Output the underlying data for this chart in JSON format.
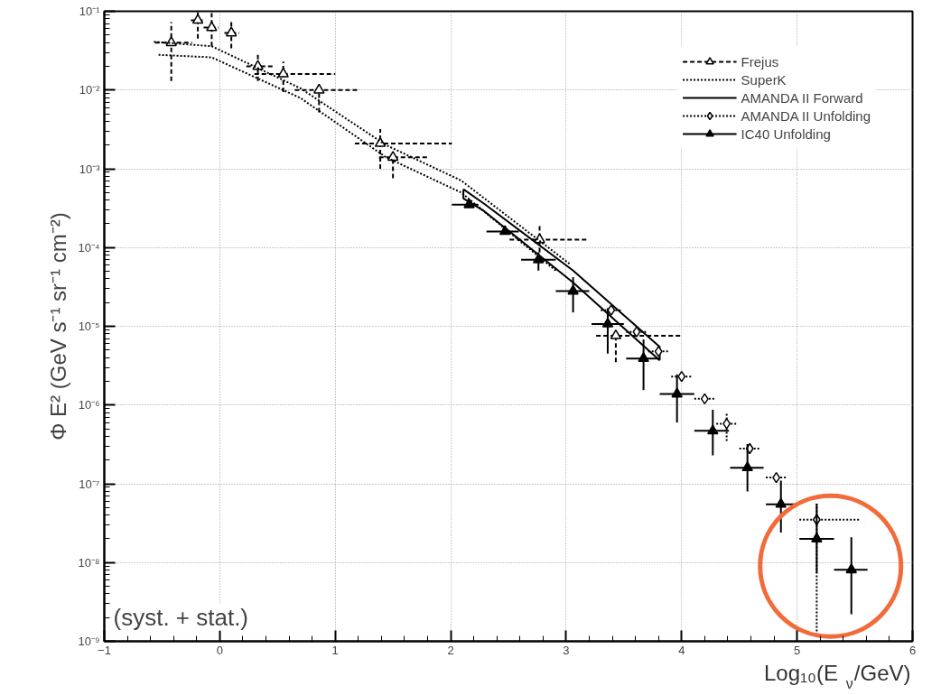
{
  "chart_data": {
    "type": "scatter",
    "xlabel": "Log₁₀(E$_{ν}$/GeV)",
    "ylabel": "Φ E² (GeV s⁻¹ sr⁻¹ cm⁻²)",
    "annotations": [
      "(syst. + stat.)"
    ],
    "xlim": [
      -1,
      6
    ],
    "ylim": [
      1e-09,
      0.1
    ],
    "xticks": [
      -1,
      0,
      1,
      2,
      3,
      4,
      5,
      6
    ],
    "yticks": [
      {
        "value": 1e-09,
        "label": "10⁻⁹"
      },
      {
        "value": 1e-08,
        "label": "10⁻⁸"
      },
      {
        "value": 1e-07,
        "label": "10⁻⁷"
      },
      {
        "value": 1e-06,
        "label": "10⁻⁶"
      },
      {
        "value": 1e-05,
        "label": "10⁻⁵"
      },
      {
        "value": 0.0001,
        "label": "10⁻⁴"
      },
      {
        "value": 0.001,
        "label": "10⁻³"
      },
      {
        "value": 0.01,
        "label": "10⁻²"
      },
      {
        "value": 0.1,
        "label": "10⁻¹"
      }
    ],
    "log": "y",
    "grid": true,
    "legend": "top right",
    "series": [
      {
        "name": "Frejus",
        "marker": "triangle",
        "line_style": "dashed",
        "color": "#000000",
        "x": [
          -0.42,
          -0.19,
          -0.07,
          0.1,
          0.33,
          0.55,
          0.86,
          1.39,
          1.5,
          2.77,
          3.43
        ],
        "values": [
          0.04,
          0.077,
          0.062,
          0.053,
          0.02,
          0.016,
          0.01,
          0.0021,
          0.0014,
          0.000126,
          7.6e-06
        ],
        "errors": [
          [
            0.013,
            0.073
          ],
          [
            0.045,
            0.1
          ],
          [
            0.036,
            0.095
          ],
          [
            0.034,
            0.075
          ],
          [
            0.013,
            0.03
          ],
          [
            0.0094,
            0.023
          ],
          [
            0.0052,
            0.011
          ],
          [
            0.001,
            0.0032
          ],
          [
            0.00076,
            0.0017
          ],
          [
            8.7e-05,
            0.0002
          ],
          [
            3.5e-06,
            8.5e-06
          ]
        ],
        "xerrors": [
          [
            -0.56,
            -0.24
          ],
          [
            -0.25,
            -0.13
          ],
          [
            -0.14,
            -0.01
          ],
          [
            0.04,
            0.17
          ],
          [
            0.23,
            0.48
          ],
          [
            0.3,
            1.0
          ],
          [
            0.65,
            1.21
          ],
          [
            1.17,
            2.01
          ],
          [
            1.38,
            1.81
          ],
          [
            2.51,
            3.19
          ],
          [
            3.26,
            4.0
          ]
        ]
      },
      {
        "name": "SuperK",
        "type": "line",
        "line_style": "dotted",
        "color": "#000000",
        "x": [
          -0.57,
          -0.07,
          0.7,
          1.44,
          2.09,
          3.03
        ],
        "values": [
          0.041,
          0.036,
          0.0105,
          0.002,
          0.00071,
          6.2e-05
        ]
      },
      {
        "type": "line",
        "line_style": "dotted",
        "color": "#000000",
        "x": [
          -0.53,
          -0.07,
          0.7,
          1.44,
          2.09,
          2.91
        ],
        "values": [
          0.028,
          0.026,
          0.0079,
          0.0014,
          0.0005,
          5.1e-05
        ]
      },
      {
        "name": "AMANDA II Forward",
        "type": "line",
        "line_style": "solid",
        "color": "#000000",
        "x": [
          2.11,
          2.29,
          3.06,
          3.81,
          3.81
        ],
        "values": [
          0.00055,
          0.00036,
          5.1e-05,
          5.5e-06,
          3.7e-06
        ]
      },
      {
        "type": "line",
        "line_style": "solid",
        "color": "#000000",
        "x": [
          2.11,
          2.11,
          2.29,
          3.06,
          3.81
        ],
        "values": [
          0.00055,
          0.00042,
          0.00029,
          3.6e-05,
          3.7e-06
        ]
      },
      {
        "name": "AMANDA II Unfolding",
        "marker": "diamond",
        "line_style": "dotted",
        "color": "#000000",
        "x": [
          3.39,
          3.61,
          3.8,
          4.0,
          4.2,
          4.39,
          4.59,
          4.82,
          5.17
        ],
        "values": [
          1.6e-05,
          8.5e-06,
          4.8e-06,
          2.3e-06,
          1.2e-06,
          5.8e-07,
          2.8e-07,
          1.2e-07,
          3.5e-08
        ],
        "errors": [
          null,
          null,
          null,
          null,
          null,
          [
            3.5e-07,
            7.9e-07
          ],
          null,
          null,
          [
            1.2e-09,
            5.6e-08
          ]
        ],
        "xerrors": [
          0.09,
          0.09,
          0.09,
          0.09,
          0.09,
          0.09,
          0.09,
          0.09,
          [
            5.02,
            5.55
          ]
        ]
      },
      {
        "name": "IC40 Unfolding",
        "marker": "triangle",
        "line_style": "solid",
        "color": "#000000",
        "x": [
          2.16,
          2.47,
          2.76,
          3.06,
          3.36,
          3.67,
          3.96,
          4.27,
          4.57,
          4.86,
          5.17,
          5.47
        ],
        "values": [
          0.00035,
          0.00016,
          7e-05,
          2.8e-05,
          1.07e-05,
          3.9e-06,
          1.38e-06,
          4.7e-07,
          1.6e-07,
          5.5e-08,
          2e-08,
          8.1e-09
        ],
        "errors": [
          null,
          null,
          [
            5.1e-05,
            8.7e-05
          ],
          [
            1.5e-05,
            4.2e-05
          ],
          [
            4.5e-06,
            1.7e-05
          ],
          [
            1.55e-06,
            6.8e-06
          ],
          [
            6e-07,
            2.45e-06
          ],
          [
            2.3e-07,
            8.7e-07
          ],
          [
            8e-08,
            3.2e-07
          ],
          [
            2.4e-08,
            1.1e-07
          ],
          [
            7.4e-09,
            5.6e-08
          ],
          [
            2.2e-09,
            2.1e-08
          ]
        ],
        "xerrors": [
          [
            2.01,
            2.24
          ],
          [
            2.31,
            2.59
          ],
          [
            2.61,
            2.91
          ],
          [
            2.91,
            3.2
          ],
          [
            3.22,
            3.5
          ],
          [
            3.52,
            3.81
          ],
          [
            3.81,
            4.11
          ],
          [
            4.11,
            4.41
          ],
          [
            4.42,
            4.71
          ],
          [
            4.73,
            5.01
          ],
          [
            5.02,
            5.32
          ],
          [
            5.32,
            5.61
          ]
        ]
      }
    ]
  }
}
